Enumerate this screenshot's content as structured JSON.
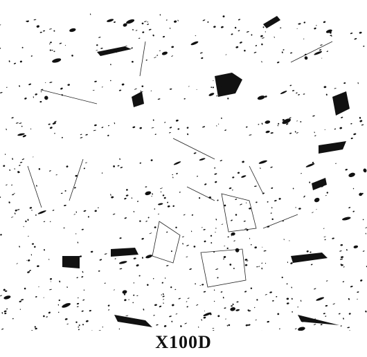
{
  "caption": "X100D"
}
